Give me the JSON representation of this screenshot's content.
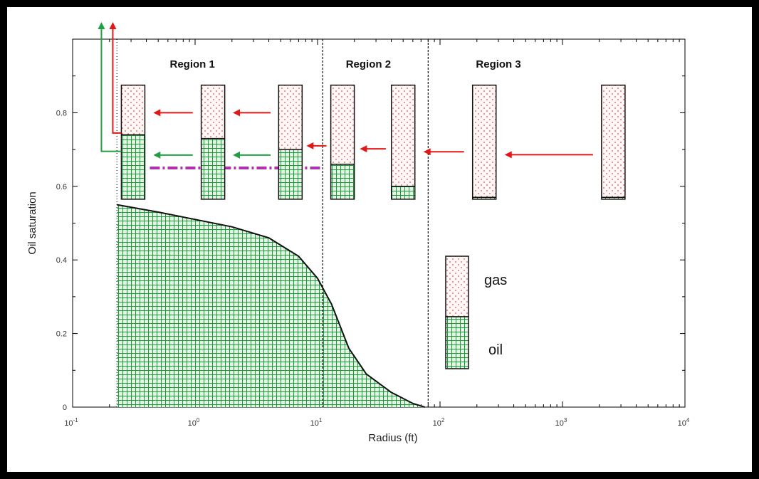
{
  "chart_data": {
    "type": "area",
    "xlabel": "Radius (ft)",
    "ylabel": "Oil saturation",
    "x_scale": "log",
    "xlim": [
      0.1,
      10000
    ],
    "ylim": [
      0,
      1
    ],
    "x_ticks": [
      {
        "value": 0.1,
        "base": "10",
        "exp": "-1"
      },
      {
        "value": 1,
        "base": "10",
        "exp": "0"
      },
      {
        "value": 10,
        "base": "10",
        "exp": "1"
      },
      {
        "value": 100,
        "base": "10",
        "exp": "2"
      },
      {
        "value": 1000,
        "base": "10",
        "exp": "3"
      },
      {
        "value": 10000,
        "base": "10",
        "exp": "4"
      }
    ],
    "y_ticks": [
      {
        "value": 0,
        "label": "0"
      },
      {
        "value": 0.2,
        "label": "0.2"
      },
      {
        "value": 0.4,
        "label": "0.4"
      },
      {
        "value": 0.6,
        "label": "0.6"
      },
      {
        "value": 0.8,
        "label": "0.8"
      }
    ],
    "saturation_profile": {
      "x": [
        0.23,
        0.5,
        1,
        2,
        4,
        7,
        10,
        13,
        18,
        25,
        40,
        60,
        75
      ],
      "y": [
        0.55,
        0.53,
        0.51,
        0.49,
        0.46,
        0.41,
        0.35,
        0.28,
        0.16,
        0.09,
        0.04,
        0.01,
        0
      ]
    },
    "region_boundaries": [
      0.23,
      11,
      80
    ],
    "regions": [
      {
        "label": "Region 1",
        "x": 0.95
      },
      {
        "label": "Region 2",
        "x": 26
      },
      {
        "label": "Region 3",
        "x": 300
      }
    ],
    "critical_saturation": 0.65,
    "cells": [
      {
        "x": 0.25,
        "oil": 0.74
      },
      {
        "x": 1.4,
        "oil": 0.73
      },
      {
        "x": 6,
        "oil": 0.7
      },
      {
        "x": 16,
        "oil": 0.66
      },
      {
        "x": 50,
        "oil": 0.6
      },
      {
        "x": 230,
        "oil": 0.57
      },
      {
        "x": 2600,
        "oil": 0.57
      }
    ],
    "legend": {
      "gas_label": "gas",
      "oil_label": "oil",
      "position": "center-right"
    },
    "colors": {
      "oil": "#1a9a3a",
      "gas": "#e05050",
      "gas_arrow": "#e01818",
      "oil_arrow": "#20a040",
      "critical_line": "#b030b0"
    }
  }
}
